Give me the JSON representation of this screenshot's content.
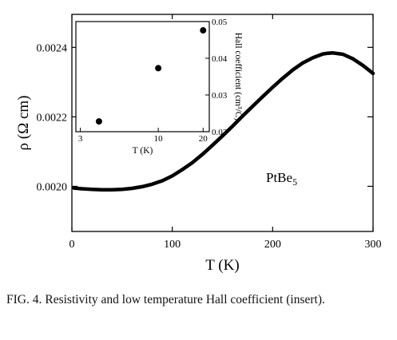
{
  "chart_data": [
    {
      "type": "line",
      "ylabel": "ρ (Ω cm)",
      "xlabel": "T (K)",
      "xlim": [
        0,
        300
      ],
      "ylim": [
        0.00187,
        0.002495
      ],
      "xticks": [
        0,
        100,
        200,
        300
      ],
      "xtick_labels": [
        "0",
        "100",
        "200",
        "300"
      ],
      "yticks": [
        0.002,
        0.0022,
        0.0024
      ],
      "ytick_labels": [
        "0.0020",
        "0.0022",
        "0.0024"
      ],
      "annotation": "PtBe",
      "annotation_sub": "5",
      "grid": false,
      "series": [
        {
          "x": [
            2,
            10,
            20,
            30,
            40,
            50,
            60,
            70,
            80,
            90,
            100,
            110,
            120,
            130,
            140,
            150,
            160,
            170,
            180,
            190,
            200,
            210,
            220,
            230,
            240,
            250,
            255,
            260,
            270,
            280,
            290,
            300
          ],
          "values": [
            0.001995,
            0.001993,
            0.001991,
            0.00199,
            0.00199,
            0.001991,
            0.001994,
            0.001999,
            0.002006,
            0.002016,
            0.00203,
            0.002048,
            0.002068,
            0.002092,
            0.002118,
            0.002145,
            0.002173,
            0.002202,
            0.00223,
            0.002258,
            0.002285,
            0.002311,
            0.002335,
            0.002355,
            0.00237,
            0.002381,
            0.002383,
            0.002384,
            0.00238,
            0.002367,
            0.002348,
            0.002325
          ]
        }
      ]
    },
    {
      "type": "scatter",
      "name": "inset",
      "xlabel": "T (K)",
      "ylabel": "Hall coefficient (cm³/C)",
      "xscale": "log",
      "xlim": [
        2.8,
        22
      ],
      "ylim": [
        0.02,
        0.05
      ],
      "xticks": [
        3,
        10,
        20
      ],
      "xtick_labels": [
        "3",
        "10",
        "20"
      ],
      "yticks": [
        0.02,
        0.03,
        0.04,
        0.05
      ],
      "ytick_labels": [
        "0.02",
        "0.03",
        "0.04",
        "0.05"
      ],
      "series": [
        {
          "x": [
            4,
            10,
            20
          ],
          "values": [
            0.0228,
            0.0373,
            0.0476
          ]
        }
      ]
    }
  ],
  "caption": {
    "label": "FIG. 4.",
    "text": "Resistivity and low temperature Hall coefficient (insert)."
  }
}
